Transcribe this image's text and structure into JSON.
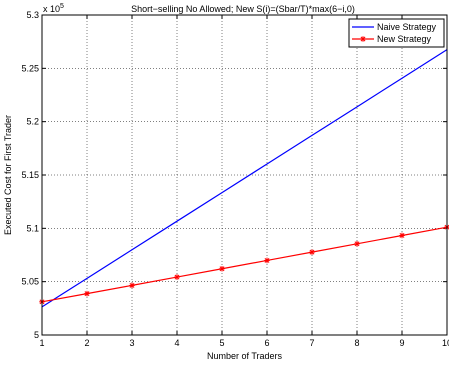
{
  "chart_data": {
    "type": "line",
    "title": "Short−selling No Allowed; New S(i)=(Sbar/T)*max(6−i,0)",
    "xlabel": "Number of Traders",
    "ylabel": "Executed Cost for First Trader",
    "y_exponent_label": "x 10",
    "y_exponent_power": "5",
    "xlim": [
      1,
      10
    ],
    "ylim": [
      5.0,
      5.3
    ],
    "x_ticks": [
      "1",
      "2",
      "3",
      "4",
      "5",
      "6",
      "7",
      "8",
      "9",
      "10"
    ],
    "y_ticks": [
      "5",
      "5.05",
      "5.1",
      "5.15",
      "5.2",
      "5.25",
      "5.3"
    ],
    "grid": true,
    "legend_position": "top-right",
    "x": [
      1,
      2,
      3,
      4,
      5,
      6,
      7,
      8,
      9,
      10
    ],
    "series": [
      {
        "name": "Naive Strategy",
        "color": "#0000ff",
        "marker": "none",
        "values": [
          5.0264,
          5.0531,
          5.0799,
          5.1067,
          5.1335,
          5.1603,
          5.1871,
          5.2139,
          5.2407,
          5.2675
        ]
      },
      {
        "name": "New Strategy",
        "color": "#ff0000",
        "marker": "star",
        "values": [
          5.0311,
          5.0388,
          5.0465,
          5.0543,
          5.0621,
          5.0699,
          5.0777,
          5.0855,
          5.0933,
          5.1011
        ]
      }
    ]
  }
}
